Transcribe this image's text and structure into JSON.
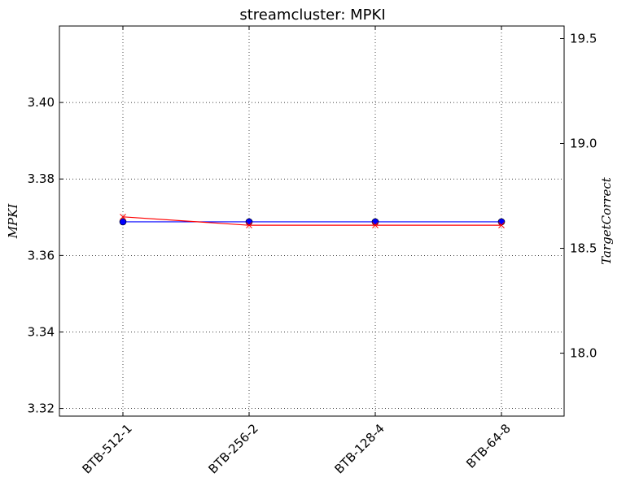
{
  "chart_data": {
    "type": "line",
    "title": "streamcluster: MPKI",
    "categories": [
      "BTB-512-1",
      "BTB-256-2",
      "BTB-128-4",
      "BTB-64-8"
    ],
    "ylabel": "MPKI",
    "y2label": "TargetCorrect",
    "ylim": [
      3.318,
      3.42
    ],
    "y2lim": [
      17.7,
      19.56
    ],
    "yticks": [
      "3.32",
      "3.34",
      "3.36",
      "3.38",
      "3.40"
    ],
    "y2ticks": [
      "18.0",
      "18.5",
      "19.0",
      "19.5"
    ],
    "grid": true,
    "series": [
      {
        "axis": "left",
        "color": "#0000ff",
        "marker": "circle",
        "values": [
          3.3688,
          3.3688,
          3.3688,
          3.3688
        ]
      },
      {
        "axis": "right",
        "color": "#ff0000",
        "marker": "x",
        "values": [
          18.65,
          18.61,
          18.61,
          18.61
        ]
      }
    ]
  }
}
